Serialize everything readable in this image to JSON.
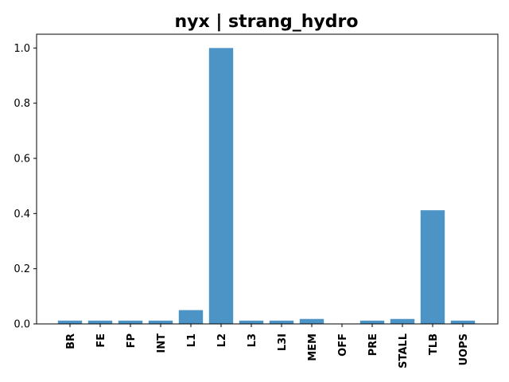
{
  "chart_data": {
    "type": "bar",
    "title": "nyx | strang_hydro",
    "xlabel": "",
    "ylabel": "",
    "categories": [
      "BR",
      "FE",
      "FP",
      "INT",
      "L1",
      "L2",
      "L3",
      "L3I",
      "MEM",
      "OFF",
      "PRE",
      "STALL",
      "TLB",
      "UOPS"
    ],
    "values": [
      0.012,
      0.012,
      0.012,
      0.012,
      0.05,
      1.0,
      0.012,
      0.012,
      0.018,
      0.0,
      0.012,
      0.018,
      0.412,
      0.012
    ],
    "ylim": [
      0,
      1.05
    ],
    "yticks": [
      "0.0",
      "0.2",
      "0.4",
      "0.6",
      "0.8",
      "1.0"
    ],
    "grid": false,
    "legend": "none",
    "bar_color": "#4c93c6"
  }
}
